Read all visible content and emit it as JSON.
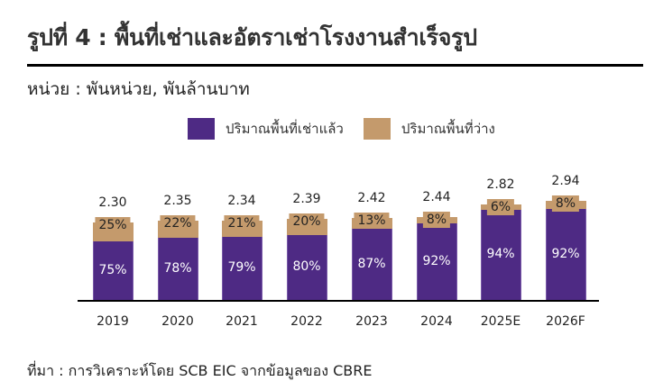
{
  "header": {
    "title": "รูปที่ 4 : พื้นที่เช่าและอัตราเช่าโรงงานสำเร็จรูป",
    "unit": "หน่วย : พันหน่วย, พันล้านบาท"
  },
  "footer": {
    "source": "ที่มา : การวิเคราะห์โดย SCB EIC จากข้อมูลของ CBRE"
  },
  "colors": {
    "occupied": "#4e2a84",
    "vacant": "#c49a6c"
  },
  "chart_data": {
    "type": "bar",
    "stacked": true,
    "title": "รูปที่ 4 : พื้นที่เช่าและอัตราเช่าโรงงานสำเร็จรูป",
    "subtitle": "หน่วย : พันหน่วย, พันล้านบาท",
    "xlabel": "",
    "ylabel": "",
    "grid": false,
    "legend_position": "top",
    "categories": [
      "2019",
      "2020",
      "2021",
      "2022",
      "2023",
      "2024",
      "2025E",
      "2026F"
    ],
    "totals": [
      2.3,
      2.35,
      2.34,
      2.39,
      2.42,
      2.44,
      2.82,
      2.94
    ],
    "total_labels": [
      "2.30",
      "2.35",
      "2.34",
      "2.39",
      "2.42",
      "2.44",
      "2.82",
      "2.94"
    ],
    "series": [
      {
        "name": "ปริมาณพื้นที่เช่าแล้ว",
        "color": "#4e2a84",
        "values_pct": [
          75,
          78,
          79,
          80,
          87,
          92,
          94,
          92
        ],
        "labels": [
          "75%",
          "78%",
          "79%",
          "80%",
          "87%",
          "92%",
          "94%",
          "92%"
        ]
      },
      {
        "name": "ปริมาณพื้นที่ว่าง",
        "color": "#c49a6c",
        "values_pct": [
          25,
          22,
          21,
          20,
          13,
          8,
          6,
          8
        ],
        "labels": [
          "25%",
          "22%",
          "21%",
          "20%",
          "13%",
          "8%",
          "6%",
          "8%"
        ]
      }
    ]
  }
}
